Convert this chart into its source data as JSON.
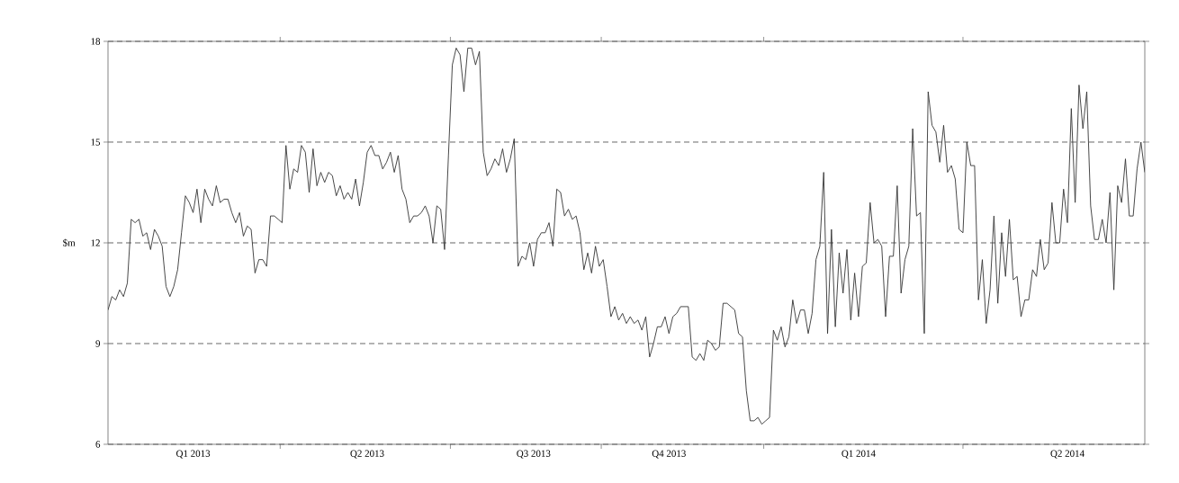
{
  "chart_data": {
    "type": "line",
    "ylabel": "$m",
    "ylim": [
      6,
      18
    ],
    "yticks": [
      6,
      9,
      12,
      15,
      18
    ],
    "grid": "y",
    "categories": [
      null,
      null,
      null,
      null,
      null,
      null,
      null,
      null,
      null,
      null,
      null,
      null,
      null,
      null,
      null,
      null,
      null,
      null,
      null,
      null,
      null,
      null,
      "Q1 2013",
      null,
      null,
      null,
      null,
      null,
      null,
      null,
      null,
      null,
      null,
      null,
      null,
      null,
      null,
      null,
      null,
      null,
      null,
      null,
      null,
      null,
      null,
      null,
      null,
      null,
      null,
      null,
      null,
      null,
      null,
      null,
      null,
      null,
      null,
      null,
      null,
      null,
      null,
      null,
      null,
      null,
      null,
      null,
      null,
      "Q2 2013",
      null,
      null,
      null,
      null,
      null,
      null,
      null,
      null,
      null,
      null,
      null,
      null,
      null,
      null,
      null,
      null,
      null,
      null,
      null,
      null,
      null,
      null,
      null,
      null,
      null,
      null,
      null,
      null,
      null,
      null,
      null,
      null,
      null,
      null,
      null,
      null,
      null,
      null,
      null,
      null,
      null,
      null,
      "Q3 2013",
      null,
      null,
      null,
      null,
      null,
      null,
      null,
      null,
      null,
      null,
      null,
      null,
      null,
      null,
      null,
      null,
      null,
      null,
      null,
      null,
      null,
      null,
      null,
      null,
      null,
      null,
      null,
      null,
      null,
      null,
      null,
      null,
      null,
      null,
      "Q4 2013",
      null,
      null,
      null,
      null,
      null,
      null,
      null,
      null,
      null,
      null,
      null,
      null,
      null,
      null,
      null,
      null,
      null,
      null,
      null,
      null,
      null,
      null,
      null,
      null,
      null,
      null,
      null,
      null,
      null,
      null,
      null,
      null,
      null,
      null,
      null,
      null,
      null,
      null,
      null,
      null,
      null,
      null,
      null,
      null,
      null,
      null,
      null,
      null,
      "Q1 2014",
      null,
      null,
      null,
      null,
      null,
      null,
      null,
      null,
      null,
      null,
      null,
      null,
      null,
      null,
      null,
      null,
      null,
      null,
      null,
      null,
      null,
      null,
      null,
      null,
      null,
      null,
      null,
      null,
      null,
      null,
      null,
      null,
      null,
      null,
      null,
      null,
      null,
      null,
      null,
      null,
      null,
      null,
      null,
      null,
      null,
      null,
      null,
      null,
      null,
      null,
      null,
      null,
      null,
      "Q2 2014",
      null,
      null,
      null,
      null,
      null,
      null,
      null,
      null,
      null,
      null,
      null,
      null,
      null,
      null,
      null,
      null,
      null,
      null,
      null,
      null
    ],
    "series": [
      {
        "color": "#333333",
        "values": [
          10.0,
          10.4,
          10.3,
          10.6,
          10.4,
          10.8,
          12.7,
          12.6,
          12.7,
          12.2,
          12.3,
          11.8,
          12.4,
          12.2,
          11.9,
          10.7,
          10.4,
          10.7,
          11.2,
          12.3,
          13.4,
          13.2,
          12.9,
          13.6,
          12.6,
          13.6,
          13.3,
          13.1,
          13.7,
          13.2,
          13.3,
          13.3,
          12.9,
          12.6,
          12.9,
          12.2,
          12.5,
          12.4,
          11.1,
          11.5,
          11.5,
          11.3,
          12.8,
          12.8,
          12.7,
          12.6,
          14.9,
          13.6,
          14.2,
          14.1,
          14.9,
          14.7,
          13.5,
          14.8,
          13.7,
          14.1,
          13.8,
          14.1,
          14.0,
          13.4,
          13.7,
          13.3,
          13.5,
          13.3,
          13.9,
          13.1,
          13.8,
          14.7,
          14.9,
          14.6,
          14.6,
          14.2,
          14.4,
          14.7,
          14.1,
          14.6,
          13.6,
          13.3,
          12.6,
          12.8,
          12.8,
          12.9,
          13.1,
          12.8,
          12.0,
          13.1,
          13.0,
          11.8,
          14.6,
          17.3,
          17.8,
          17.6,
          16.5,
          17.8,
          17.8,
          17.3,
          17.7,
          14.7,
          14.0,
          14.2,
          14.5,
          14.3,
          14.8,
          14.1,
          14.5,
          15.1,
          11.3,
          11.6,
          11.5,
          12.0,
          11.3,
          12.1,
          12.3,
          12.3,
          12.6,
          11.9,
          13.6,
          13.5,
          12.8,
          13.0,
          12.7,
          12.8,
          12.3,
          11.2,
          11.7,
          11.1,
          11.9,
          11.3,
          11.5,
          10.7,
          9.8,
          10.1,
          9.7,
          9.9,
          9.6,
          9.8,
          9.6,
          9.7,
          9.4,
          9.8,
          8.6,
          9.0,
          9.5,
          9.5,
          9.8,
          9.3,
          9.8,
          9.9,
          10.1,
          10.1,
          10.1,
          8.6,
          8.5,
          8.7,
          8.5,
          9.1,
          9.0,
          8.8,
          8.9,
          10.2,
          10.2,
          10.1,
          10.0,
          9.3,
          9.2,
          7.6,
          6.7,
          6.7,
          6.8,
          6.6,
          6.7,
          6.8,
          9.4,
          9.1,
          9.5,
          8.9,
          9.2,
          10.3,
          9.6,
          10.0,
          10.0,
          9.3,
          9.9,
          11.5,
          11.9,
          14.1,
          9.3,
          12.4,
          9.5,
          11.7,
          10.5,
          11.8,
          9.7,
          11.1,
          9.8,
          11.3,
          11.4,
          13.2,
          12.0,
          12.1,
          11.9,
          9.8,
          11.6,
          11.6,
          13.7,
          10.5,
          11.5,
          11.9,
          15.4,
          12.8,
          12.9,
          9.3,
          16.5,
          15.5,
          15.3,
          14.4,
          15.5,
          14.1,
          14.3,
          13.9,
          12.4,
          12.3,
          15.0,
          14.3,
          14.3,
          10.3,
          11.5,
          9.6,
          10.6,
          12.8,
          10.2,
          12.3,
          11.0,
          12.7,
          10.9,
          11.0,
          9.8,
          10.3,
          10.3,
          11.2,
          11.0,
          12.1,
          11.2,
          11.4,
          13.2,
          12.0,
          12.0,
          13.6,
          12.6,
          16.0,
          13.2,
          16.7,
          15.4,
          16.5,
          13.1,
          12.1,
          12.1,
          12.7,
          12.0,
          13.5,
          10.6,
          13.7,
          13.2,
          14.5,
          12.8,
          12.8,
          14.2,
          15.0,
          14.1
        ]
      }
    ]
  }
}
